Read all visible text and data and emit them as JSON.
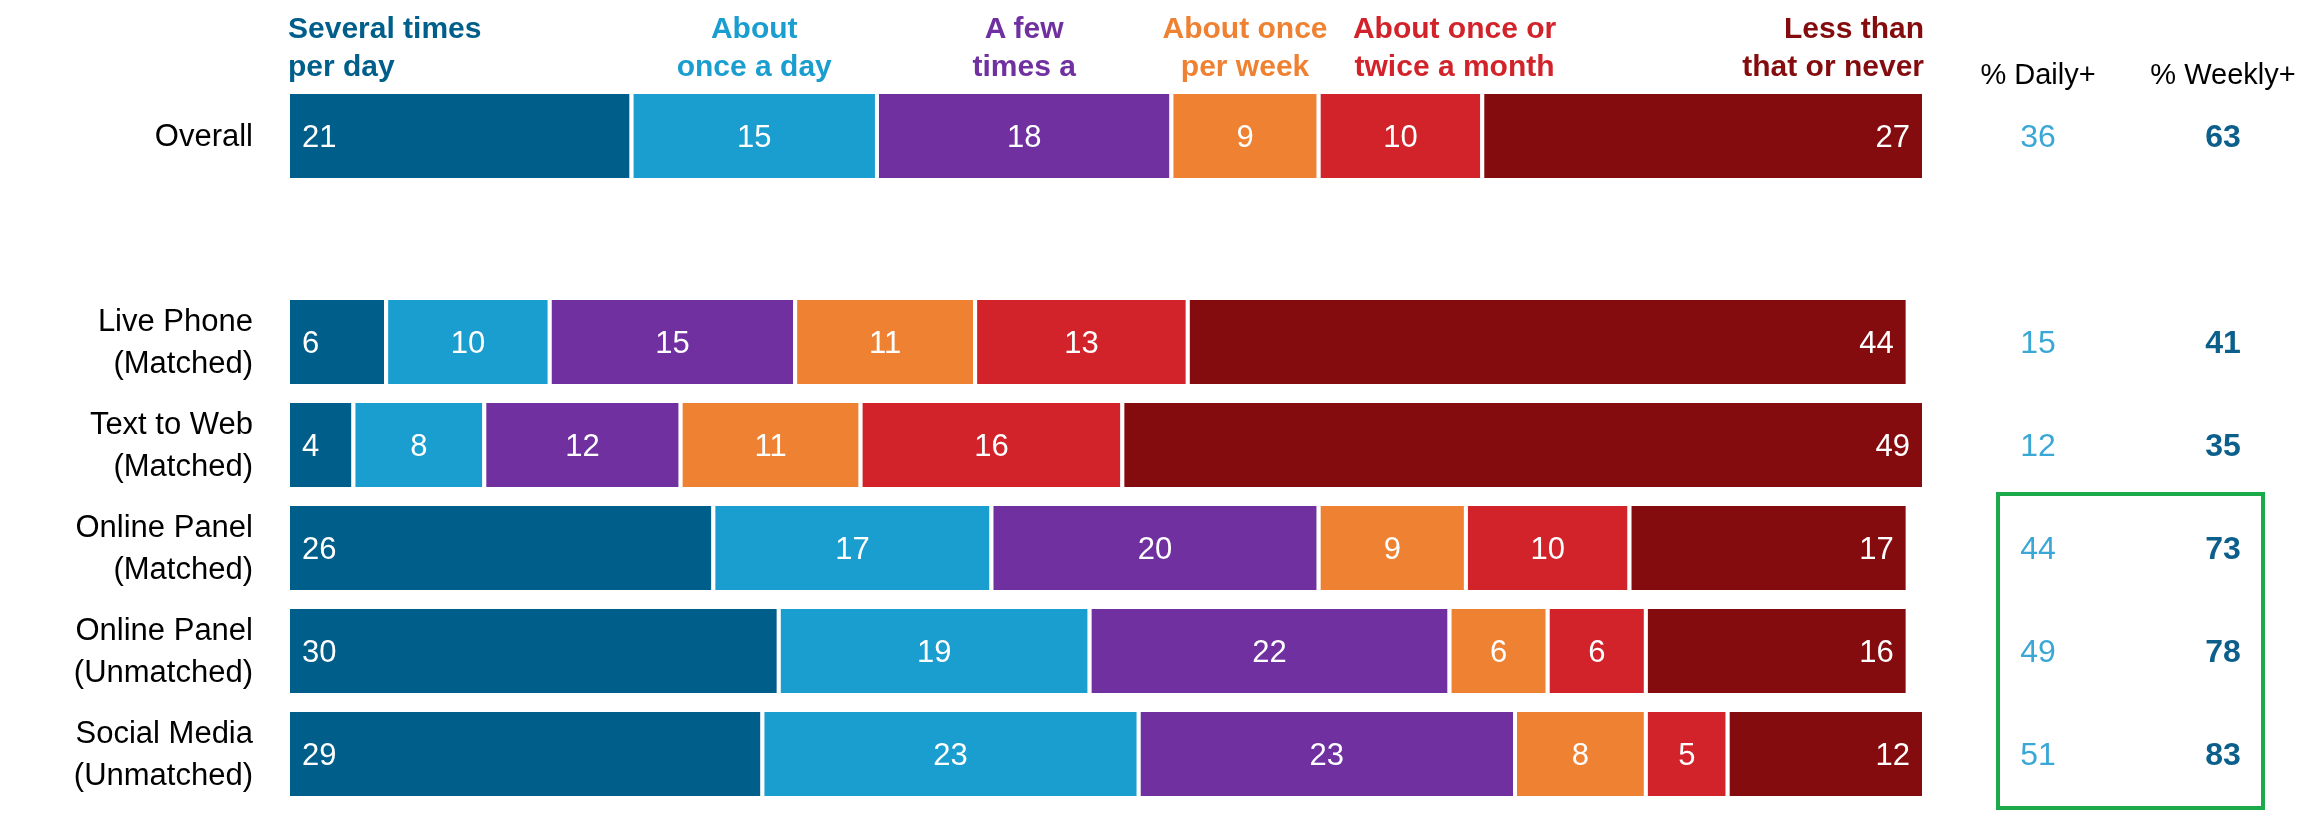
{
  "chart_data": {
    "type": "bar",
    "orientation": "horizontal",
    "stacked": true,
    "data_labels": true,
    "legend": "top",
    "categories": [
      "Overall",
      null,
      "Live Phone\n(Matched)",
      "Text to Web\n(Matched)",
      "Online Panel\n(Matched)",
      "Online Panel\n(Unmatched)",
      "Social Media\n(Unmatched)"
    ],
    "series": [
      {
        "name": "Several times\nper day",
        "color": "#005e8a",
        "values": [
          21,
          null,
          6,
          4,
          26,
          30,
          29
        ]
      },
      {
        "name": "About\nonce a day",
        "color": "#1a9dcf",
        "values": [
          15,
          null,
          10,
          8,
          17,
          19,
          23
        ]
      },
      {
        "name": "A few\ntimes a",
        "color": "#7030a0",
        "values": [
          18,
          null,
          15,
          12,
          20,
          22,
          23
        ]
      },
      {
        "name": "About once\nper week",
        "color": "#ef8132",
        "values": [
          9,
          null,
          11,
          11,
          9,
          6,
          8
        ]
      },
      {
        "name": "About once or\ntwice a month",
        "color": "#d2232a",
        "values": [
          10,
          null,
          13,
          16,
          10,
          6,
          5
        ]
      },
      {
        "name": "Less than\nthat or never",
        "color": "#850c0e",
        "values": [
          27,
          null,
          44,
          49,
          17,
          16,
          12
        ]
      }
    ],
    "annotations": [
      "% Daily+",
      "% Weekly+",
      "36",
      "63",
      "15",
      "41",
      "12",
      "35",
      "44",
      "73",
      "49",
      "78",
      "51",
      "83"
    ]
  }
}
